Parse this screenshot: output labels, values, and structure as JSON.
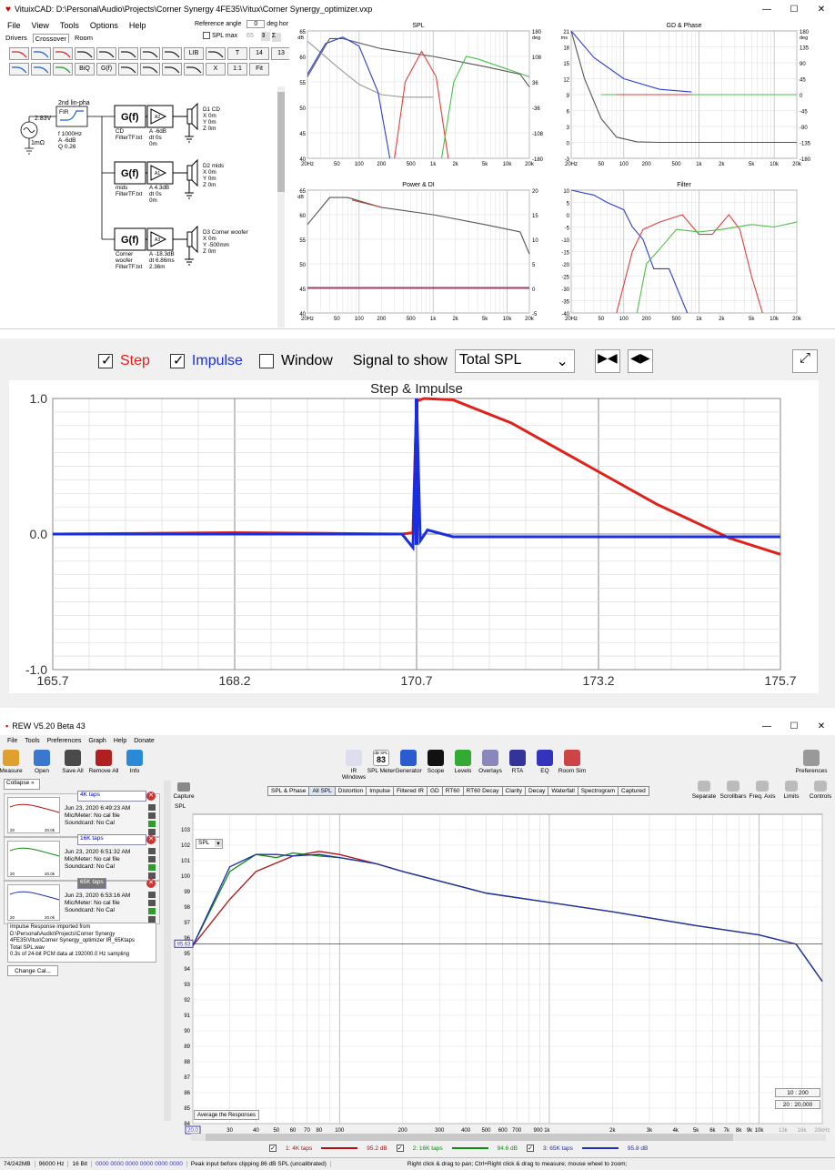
{
  "vitux": {
    "title": "VituixCAD: D:\\Personal\\Audio\\Projects\\Corner Synergy 4FE35\\Vitux\\Corner Synergy_optimizer.vxp",
    "menu": [
      "File",
      "View",
      "Tools",
      "Options",
      "Help"
    ],
    "tabs": [
      "Drivers",
      "Crossover",
      "Room"
    ],
    "ref_angle_label": "Reference angle",
    "ref_angle_value": "0",
    "deg_hor": "deg hor",
    "spl_max_label": "SPL max",
    "spl_max_value": "65",
    "toolbar_text": [
      "BiQ",
      "G(f)",
      "LIB",
      "T",
      "14",
      "13",
      "X",
      "1:1",
      "Fit"
    ],
    "schematic": {
      "source": "2.83V",
      "source_r": "1mΩ",
      "fir_title": "2nd lin-pha",
      "fir_label": "FIR",
      "fir_params": [
        "f   1000Hz",
        "A  -6dB",
        "Q  0.26"
      ],
      "gf": "G(f)",
      "blocks": [
        {
          "filter": "CD\nFilterTF.txt",
          "amp": "A2",
          "amp_params": "A  -6dB\ndt 0s\n     0m",
          "driver": "D1 CD\nX 0m\nY 0m\nZ 0m"
        },
        {
          "filter": "mids\nFilterTF.txt",
          "amp": "A1",
          "amp_params": "A  4.3dB\ndt 0s\n     0m",
          "driver": "D2 mids\nX 0m\nY 0m\nZ 0m"
        },
        {
          "filter": "Corner\nwoofer\nFilterTF.txt",
          "amp": "A3",
          "amp_params": "A  -18.3dB\ndt 6.86ms\n     2.36m",
          "driver": "D3 Corner woofer\nX 0m\nY -500mm\nZ 0m"
        }
      ]
    },
    "graphs": {
      "spl": {
        "title": "SPL",
        "yl_unit": "dB",
        "yr_unit": "deg",
        "yl": [
          "65",
          "60",
          "55",
          "50",
          "45",
          "40"
        ],
        "yr": [
          "180",
          "108",
          "36",
          "-36",
          "-108",
          "-180"
        ],
        "x": [
          "20Hz",
          "50",
          "100",
          "200",
          "500",
          "1k",
          "2k",
          "5k",
          "10k",
          "20k"
        ]
      },
      "gd": {
        "title": "GD & Phase",
        "yl_unit": "ms",
        "yr_unit": "deg",
        "yl": [
          "21",
          "18",
          "15",
          "12",
          "9",
          "6",
          "3",
          "0",
          "-3"
        ],
        "yr": [
          "180",
          "135",
          "90",
          "45",
          "0",
          "-45",
          "-90",
          "-135",
          "-180"
        ],
        "x": [
          "20Hz",
          "50",
          "100",
          "200",
          "500",
          "1k",
          "2k",
          "5k",
          "10k",
          "20k"
        ]
      },
      "power": {
        "title": "Power & DI",
        "yl_unit": "dB",
        "yl": [
          "65",
          "60",
          "55",
          "50",
          "45",
          "40"
        ],
        "yr": [
          "20",
          "15",
          "10",
          "5",
          "0",
          "-5"
        ],
        "x": [
          "20Hz",
          "50",
          "100",
          "200",
          "500",
          "1k",
          "2k",
          "5k",
          "10k",
          "20k"
        ]
      },
      "filter": {
        "title": "Filter",
        "yl": [
          "10",
          "5",
          "0",
          "-5",
          "-10",
          "-15",
          "-20",
          "-25",
          "-30",
          "-35",
          "-40"
        ],
        "x": [
          "20Hz",
          "50",
          "100",
          "200",
          "500",
          "1k",
          "2k",
          "5k",
          "10k",
          "20k"
        ]
      }
    }
  },
  "step": {
    "step_label": "Step",
    "impulse_label": "Impulse",
    "window_label": "Window",
    "signal_label": "Signal to show",
    "signal_value": "Total SPL",
    "chart_title": "Step & Impulse",
    "colors": {
      "step": "#e0201a",
      "impulse": "#1a2ee0"
    }
  },
  "chart_data": [
    {
      "type": "line",
      "title": "Step & Impulse",
      "xlim": [
        165.7,
        175.7
      ],
      "ylim": [
        -1.0,
        1.0
      ],
      "x_ticks": [
        "165.7",
        "168.2",
        "170.7",
        "173.2",
        "175.7"
      ],
      "y_ticks": [
        "1.0",
        "0.0",
        "-1.0"
      ],
      "series": [
        {
          "name": "Step",
          "x": [
            165.7,
            167,
            168.2,
            169.5,
            170.5,
            170.65,
            170.7,
            170.8,
            171.2,
            172,
            173,
            174,
            175,
            175.7
          ],
          "y": [
            0,
            0.005,
            0.01,
            0.005,
            0,
            0.01,
            0.98,
            1.0,
            0.99,
            0.82,
            0.52,
            0.22,
            -0.03,
            -0.15
          ]
        },
        {
          "name": "Impulse",
          "x": [
            165.7,
            170.5,
            170.65,
            170.7,
            170.75,
            170.85,
            171.2,
            175.7
          ],
          "y": [
            0,
            0,
            -0.1,
            1.0,
            -0.05,
            0.03,
            -0.02,
            -0.02
          ]
        }
      ]
    },
    {
      "type": "line",
      "title": "",
      "ylabel": "SPL",
      "ylim": [
        84,
        104
      ],
      "x_ticks": [
        "20.0",
        "30",
        "40",
        "50",
        "60",
        "70",
        "80",
        "100",
        "200",
        "300",
        "400",
        "500",
        "600",
        "700",
        "900 1k",
        "2k",
        "3k",
        "4k",
        "5k",
        "6k",
        "7k",
        "8k",
        "9k",
        "10k",
        "13k",
        "16k",
        "20kHz"
      ],
      "y_ticks": [
        "103",
        "102",
        "101",
        "100",
        "99",
        "98",
        "97",
        "96",
        "95",
        "94",
        "93",
        "92",
        "91",
        "90",
        "89",
        "88",
        "87",
        "86",
        "85",
        "84"
      ],
      "series": [
        {
          "name": "1: 4K taps",
          "x": [
            20,
            30,
            40,
            60,
            80,
            100,
            150,
            200,
            500,
            1000,
            2000,
            5000,
            10000,
            15000,
            20000
          ],
          "y": [
            95.5,
            98.5,
            100.3,
            101.3,
            101.6,
            101.4,
            100.8,
            100.3,
            98.9,
            98.3,
            97.7,
            96.8,
            96.2,
            95.6,
            93.2
          ]
        },
        {
          "name": "2: 16K taps",
          "x": [
            20,
            30,
            40,
            50,
            60,
            80,
            100,
            150,
            200,
            500,
            1000,
            2000,
            5000,
            10000,
            15000,
            20000
          ],
          "y": [
            95.5,
            100.3,
            101.4,
            101.2,
            101.5,
            101.3,
            101.2,
            100.8,
            100.3,
            98.9,
            98.3,
            97.7,
            96.8,
            96.2,
            95.6,
            93.2
          ]
        },
        {
          "name": "3: 65K taps",
          "x": [
            20,
            30,
            40,
            50,
            60,
            80,
            100,
            150,
            200,
            500,
            1000,
            2000,
            5000,
            10000,
            15000,
            20000
          ],
          "y": [
            95.5,
            100.6,
            101.4,
            101.4,
            101.3,
            101.4,
            101.2,
            100.8,
            100.3,
            98.9,
            98.3,
            97.7,
            96.8,
            96.2,
            95.6,
            93.2
          ]
        }
      ]
    }
  ],
  "rew": {
    "title": "REW V5.20 Beta 43",
    "menu": [
      "File",
      "Tools",
      "Preferences",
      "Graph",
      "Help",
      "Donate"
    ],
    "toolbar": [
      "Measure",
      "Open",
      "Save All",
      "Remove All",
      "Info"
    ],
    "center_tools": [
      "IR Windows",
      "SPL Meter",
      "Generator",
      "Scope",
      "Levels",
      "Overlays",
      "RTA",
      "EQ",
      "Room Sim"
    ],
    "spl_meter_value": "83",
    "spl_meter_unit": "dB SPL",
    "prefs": "Preferences",
    "collapse": "Collapse",
    "capture": "Capture",
    "graph_tabs": [
      "SPL & Phase",
      "All SPL",
      "Distortion",
      "Impulse",
      "Filtered IR",
      "GD",
      "RT60",
      "RT60 Decay",
      "Clarity",
      "Decay",
      "Waterfall",
      "Spectrogram",
      "Captured"
    ],
    "right_tools": [
      "Separate",
      "Scrollbars",
      "Freq. Axis",
      "Limits",
      "Controls"
    ],
    "measurements": [
      {
        "name": "4K taps",
        "date": "Jun 23, 2020 6:49:23 AM",
        "mic": "Mic/Meter: No cal file",
        "sound": "Soundcard: No Cal"
      },
      {
        "name": "16K taps",
        "date": "Jun 23, 2020 6:51:32 AM",
        "mic": "Mic/Meter: No cal file",
        "sound": "Soundcard: No Cal"
      },
      {
        "name": "65K taps",
        "date": "Jun 23, 2020 6:53:16 AM",
        "mic": "Mic/Meter: No cal file",
        "sound": "Soundcard: No Cal"
      }
    ],
    "thumb_axis": [
      "20",
      "20.0k"
    ],
    "info_text": "Impulse Response imported from\nD:\\Personal\\Audio\\Projects\\Corner Synergy\n4FE35\\Vitux\\Corner Synergy_optimizer IR_65Ktaps\nTotal SPL.wav\n0.3s of 24-bit PCM data at 192000.0 Hz sampling",
    "change_cal": "Change Cal...",
    "spl_axis_label": "SPL",
    "spl_dropdown": "SPL",
    "cursor_value": "95.63",
    "avg_btn": "Average the Responses",
    "range_btns": [
      "10 : 200",
      "20 : 20,000"
    ],
    "x_left_value": "20.0",
    "legend": [
      {
        "label": "1: 4K taps",
        "value": "95.2 dB",
        "color": "#b01010"
      },
      {
        "label": "2: 16K taps",
        "value": "94.6 dB",
        "color": "#108a10"
      },
      {
        "label": "3: 65K taps",
        "value": "95.8 dB",
        "color": "#2030b0"
      }
    ],
    "status": [
      "74/242MB",
      "96000 Hz",
      "16 Bit",
      "0000 0000  0000 0000  0000 0000",
      "Peak input before clipping 86 dB SPL (uncalibrated)",
      "Right click & drag to pan; Ctrl+Right click & drag to measure; mouse wheel to zoom;"
    ]
  }
}
